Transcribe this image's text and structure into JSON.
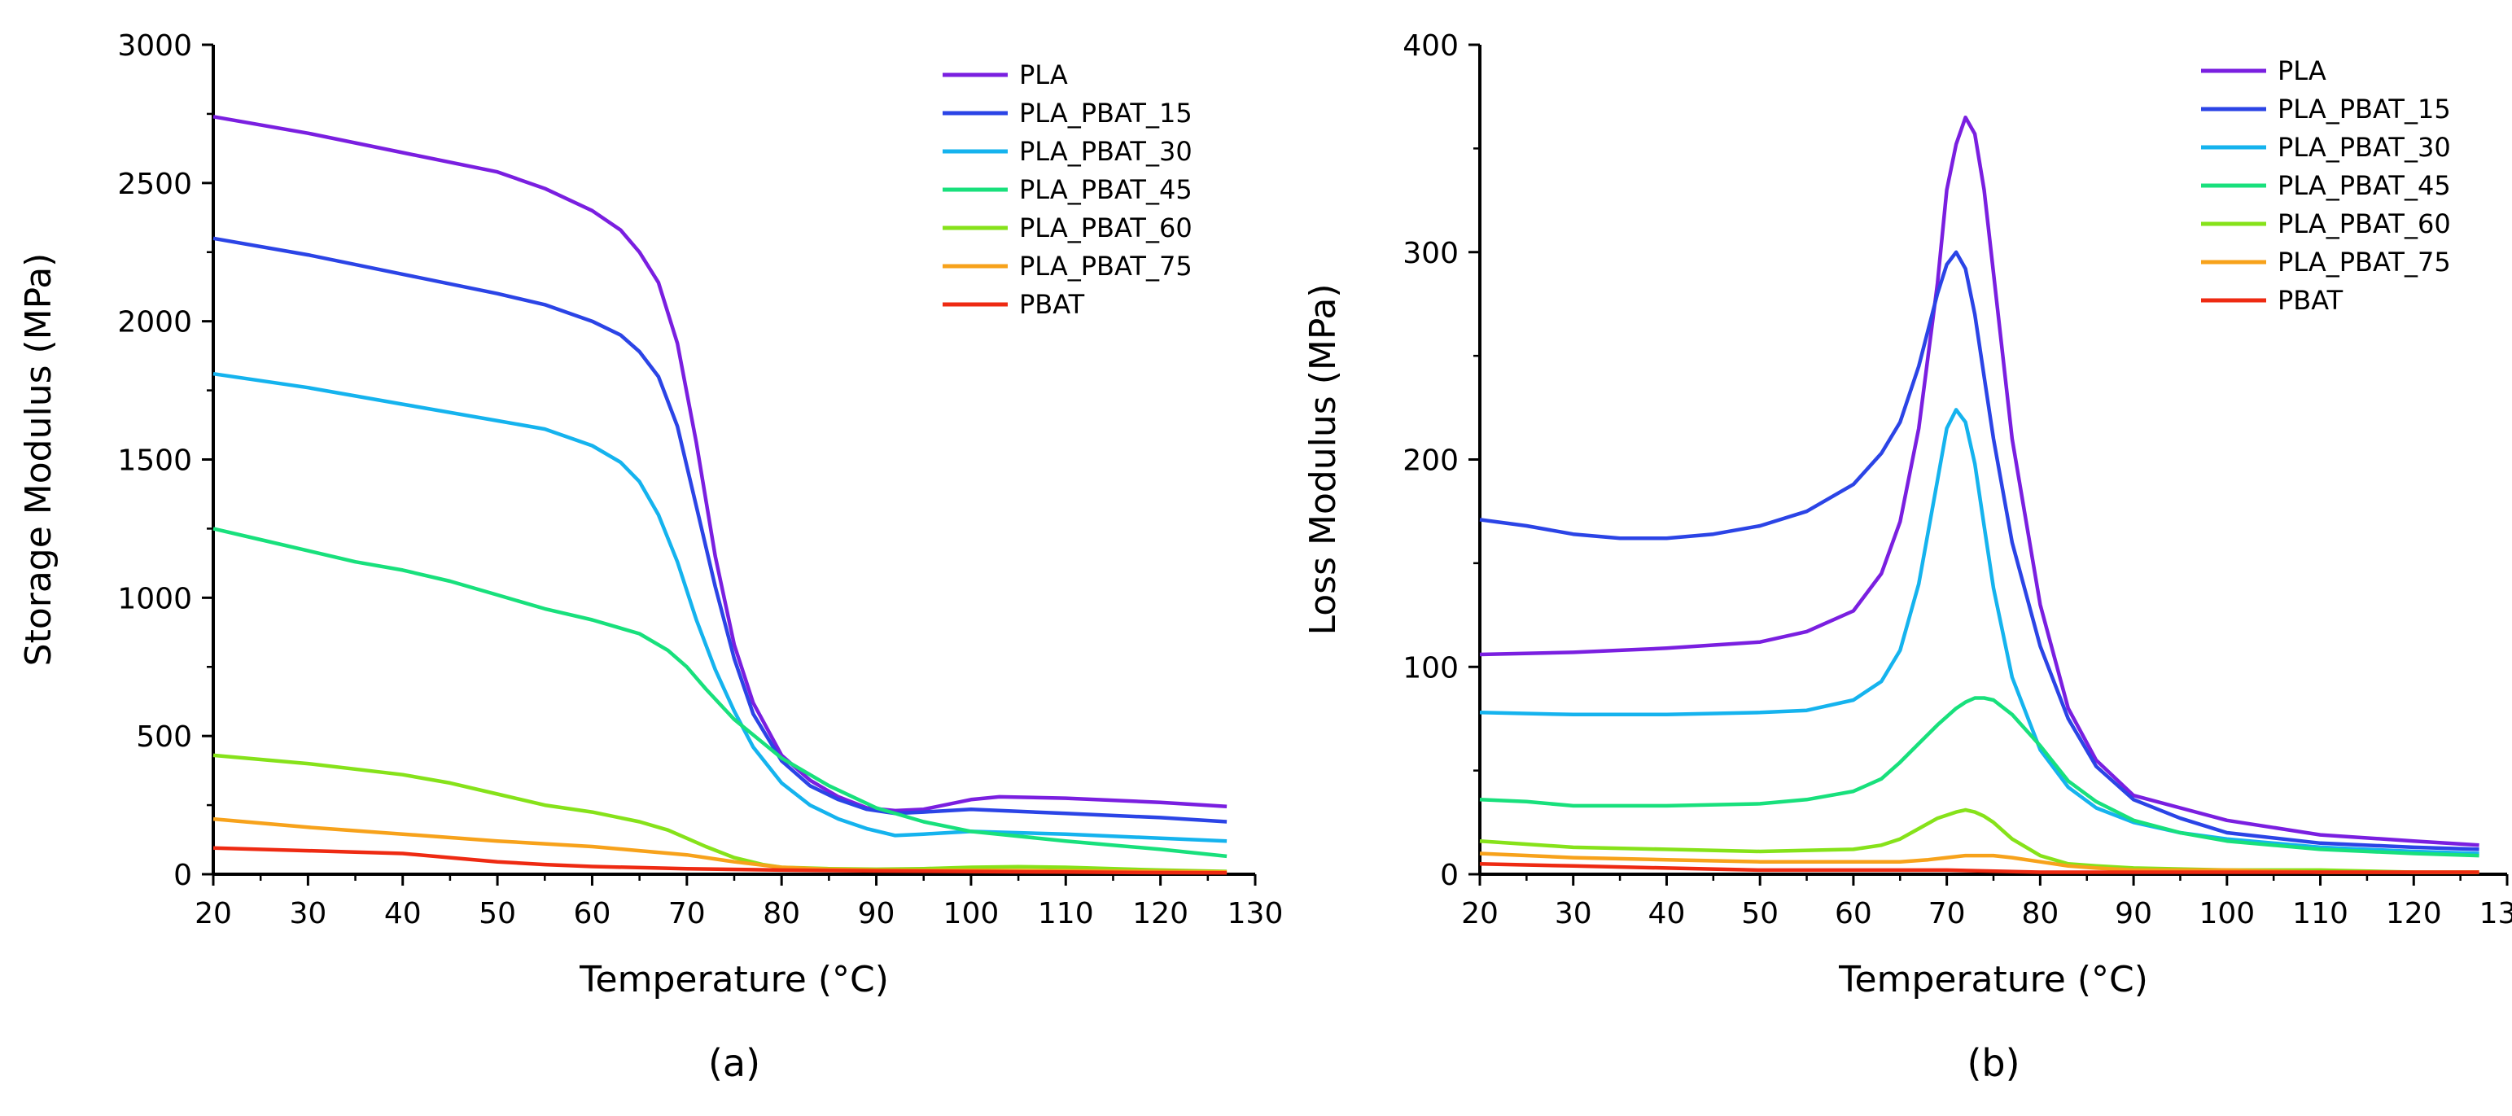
{
  "colors": {
    "PLA": "#7a1fe0",
    "PLA_PBAT_15": "#2b44e6",
    "PLA_PBAT_30": "#15b3ee",
    "PLA_PBAT_45": "#18e07c",
    "PLA_PBAT_60": "#86e21a",
    "PLA_PBAT_75": "#f7a21b",
    "PBAT": "#ee2a12"
  },
  "chart_data": [
    {
      "type": "line",
      "panel_label": "(a)",
      "xlabel": "Temperature (°C)",
      "ylabel": "Storage Modulus (MPa)",
      "xlim": [
        20,
        130
      ],
      "ylim": [
        0,
        3000
      ],
      "xticks": [
        20,
        30,
        40,
        50,
        60,
        70,
        80,
        90,
        100,
        110,
        120,
        130
      ],
      "yticks": [
        0,
        500,
        1000,
        1500,
        2000,
        2500,
        3000
      ],
      "legend_position": "top-right",
      "series": [
        {
          "name": "PLA",
          "x": [
            20,
            30,
            40,
            50,
            55,
            60,
            63,
            65,
            67,
            69,
            71,
            73,
            75,
            77,
            80,
            83,
            86,
            89,
            92,
            95,
            100,
            103,
            110,
            120,
            127
          ],
          "y": [
            2740,
            2680,
            2610,
            2540,
            2480,
            2400,
            2330,
            2250,
            2140,
            1920,
            1560,
            1150,
            830,
            620,
            430,
            340,
            280,
            240,
            230,
            235,
            270,
            280,
            275,
            260,
            245
          ]
        },
        {
          "name": "PLA_PBAT_15",
          "x": [
            20,
            30,
            40,
            50,
            55,
            60,
            63,
            65,
            67,
            69,
            71,
            73,
            75,
            77,
            80,
            83,
            86,
            89,
            92,
            95,
            100,
            110,
            120,
            127
          ],
          "y": [
            2300,
            2240,
            2170,
            2100,
            2060,
            2000,
            1950,
            1890,
            1800,
            1620,
            1330,
            1040,
            780,
            580,
            410,
            320,
            270,
            235,
            220,
            225,
            235,
            220,
            205,
            190
          ]
        },
        {
          "name": "PLA_PBAT_30",
          "x": [
            20,
            30,
            40,
            50,
            55,
            60,
            63,
            65,
            67,
            69,
            71,
            73,
            75,
            77,
            80,
            83,
            86,
            89,
            92,
            95,
            100,
            110,
            120,
            127
          ],
          "y": [
            1810,
            1760,
            1700,
            1640,
            1610,
            1550,
            1490,
            1420,
            1300,
            1130,
            920,
            740,
            590,
            460,
            330,
            250,
            200,
            165,
            140,
            145,
            155,
            145,
            130,
            120
          ]
        },
        {
          "name": "PLA_PBAT_45",
          "x": [
            20,
            25,
            30,
            35,
            40,
            45,
            50,
            55,
            60,
            65,
            68,
            70,
            72,
            75,
            80,
            85,
            90,
            95,
            100,
            110,
            120,
            127
          ],
          "y": [
            1250,
            1210,
            1170,
            1130,
            1100,
            1060,
            1010,
            960,
            920,
            870,
            810,
            750,
            670,
            560,
            420,
            320,
            240,
            190,
            155,
            120,
            90,
            65
          ]
        },
        {
          "name": "PLA_PBAT_60",
          "x": [
            20,
            30,
            40,
            45,
            50,
            55,
            60,
            65,
            68,
            70,
            72,
            75,
            78,
            80,
            85,
            90,
            95,
            100,
            105,
            110,
            120,
            127
          ],
          "y": [
            430,
            400,
            360,
            330,
            290,
            250,
            225,
            190,
            160,
            130,
            100,
            60,
            35,
            25,
            20,
            18,
            20,
            25,
            27,
            25,
            15,
            10
          ]
        },
        {
          "name": "PLA_PBAT_75",
          "x": [
            20,
            30,
            40,
            50,
            60,
            65,
            70,
            75,
            80,
            85,
            90,
            95,
            100,
            110,
            120,
            127
          ],
          "y": [
            200,
            170,
            145,
            120,
            100,
            85,
            70,
            45,
            25,
            18,
            15,
            14,
            14,
            12,
            10,
            8
          ]
        },
        {
          "name": "PBAT",
          "x": [
            20,
            30,
            40,
            45,
            50,
            55,
            60,
            70,
            80,
            90,
            100,
            110,
            120,
            127
          ],
          "y": [
            95,
            85,
            75,
            60,
            45,
            35,
            28,
            20,
            15,
            12,
            10,
            8,
            6,
            5
          ]
        }
      ]
    },
    {
      "type": "line",
      "panel_label": "(b)",
      "xlabel": "Temperature (°C)",
      "ylabel": "Loss Modulus (MPa)",
      "xlim": [
        20,
        130
      ],
      "ylim": [
        0,
        400
      ],
      "xticks": [
        20,
        30,
        40,
        50,
        60,
        70,
        80,
        90,
        100,
        110,
        120,
        130
      ],
      "yticks": [
        0,
        100,
        200,
        300,
        400
      ],
      "legend_position": "top-right",
      "series": [
        {
          "name": "PLA",
          "x": [
            20,
            30,
            40,
            50,
            55,
            60,
            63,
            65,
            67,
            69,
            70,
            71,
            72,
            73,
            74,
            75,
            77,
            80,
            83,
            86,
            90,
            95,
            100,
            110,
            120,
            127
          ],
          "y": [
            106,
            107,
            109,
            112,
            117,
            127,
            145,
            170,
            215,
            285,
            330,
            352,
            365,
            357,
            330,
            290,
            210,
            130,
            80,
            55,
            38,
            32,
            26,
            19,
            16,
            14
          ]
        },
        {
          "name": "PLA_PBAT_15",
          "x": [
            20,
            25,
            30,
            35,
            40,
            45,
            50,
            55,
            60,
            63,
            65,
            67,
            69,
            70,
            71,
            72,
            73,
            74,
            75,
            77,
            80,
            83,
            86,
            90,
            95,
            100,
            110,
            120,
            127
          ],
          "y": [
            171,
            168,
            164,
            162,
            162,
            164,
            168,
            175,
            188,
            203,
            218,
            245,
            280,
            294,
            300,
            292,
            270,
            240,
            210,
            160,
            110,
            75,
            52,
            36,
            27,
            20,
            15,
            13,
            12
          ]
        },
        {
          "name": "PLA_PBAT_30",
          "x": [
            20,
            30,
            40,
            50,
            55,
            60,
            63,
            65,
            67,
            69,
            70,
            71,
            72,
            73,
            74,
            75,
            77,
            80,
            83,
            86,
            90,
            95,
            100,
            110,
            120,
            127
          ],
          "y": [
            78,
            77,
            77,
            78,
            79,
            84,
            93,
            108,
            140,
            190,
            215,
            224,
            218,
            198,
            168,
            138,
            95,
            60,
            42,
            32,
            25,
            20,
            17,
            13,
            11,
            10
          ]
        },
        {
          "name": "PLA_PBAT_45",
          "x": [
            20,
            25,
            30,
            40,
            50,
            55,
            60,
            63,
            65,
            67,
            69,
            71,
            72,
            73,
            74,
            75,
            77,
            80,
            83,
            86,
            90,
            95,
            100,
            110,
            120,
            127
          ],
          "y": [
            36,
            35,
            33,
            33,
            34,
            36,
            40,
            46,
            54,
            63,
            72,
            80,
            83,
            85,
            85,
            84,
            77,
            62,
            45,
            35,
            26,
            20,
            16,
            12,
            10,
            9
          ]
        },
        {
          "name": "PLA_PBAT_60",
          "x": [
            20,
            30,
            40,
            50,
            60,
            63,
            65,
            67,
            69,
            71,
            72,
            73,
            74,
            75,
            77,
            80,
            83,
            86,
            90,
            100,
            110,
            120,
            127
          ],
          "y": [
            16,
            13,
            12,
            11,
            12,
            14,
            17,
            22,
            27,
            30,
            31,
            30,
            28,
            25,
            17,
            9,
            5,
            4,
            3,
            2,
            2,
            1,
            1
          ]
        },
        {
          "name": "PLA_PBAT_75",
          "x": [
            20,
            30,
            40,
            50,
            60,
            65,
            68,
            70,
            72,
            74,
            75,
            77,
            80,
            83,
            86,
            90,
            100,
            110,
            120,
            127
          ],
          "y": [
            10,
            8,
            7,
            6,
            6,
            6,
            7,
            8,
            9,
            9,
            9,
            8,
            6,
            4,
            3,
            2,
            2,
            1,
            1,
            1
          ]
        },
        {
          "name": "PBAT",
          "x": [
            20,
            30,
            40,
            50,
            60,
            70,
            80,
            90,
            100,
            110,
            120,
            127
          ],
          "y": [
            5,
            4,
            3,
            2,
            2,
            2,
            1,
            1,
            1,
            1,
            1,
            1
          ]
        }
      ]
    }
  ]
}
